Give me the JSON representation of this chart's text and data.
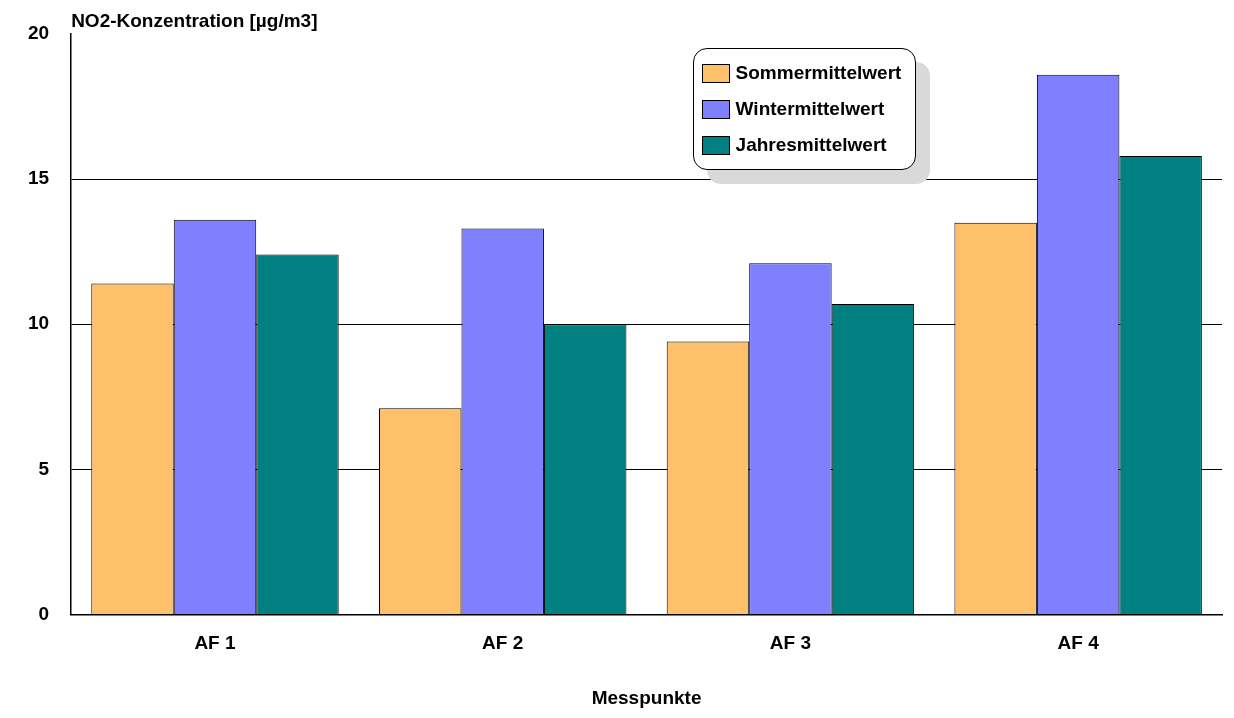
{
  "chart_data": {
    "type": "bar",
    "ylabel": "NO2-Konzentration [µg/m3]",
    "xlabel": "Messpunkte",
    "categories": [
      "AF 1",
      "AF 2",
      "AF 3",
      "AF 4"
    ],
    "series": [
      {
        "name": "Sommermittelwert",
        "color": "#ffc06b",
        "values": [
          11.4,
          7.1,
          9.4,
          13.5
        ]
      },
      {
        "name": "Wintermittelwert",
        "color": "#8080ff",
        "values": [
          13.6,
          13.3,
          12.1,
          18.6
        ]
      },
      {
        "name": "Jahresmittelwert",
        "color": "#008080",
        "values": [
          12.4,
          10.0,
          10.7,
          15.8
        ]
      }
    ],
    "ylim": [
      0,
      20
    ],
    "yticks": [
      0,
      5,
      10,
      15,
      20
    ],
    "grid": "y",
    "legend": "top right"
  }
}
